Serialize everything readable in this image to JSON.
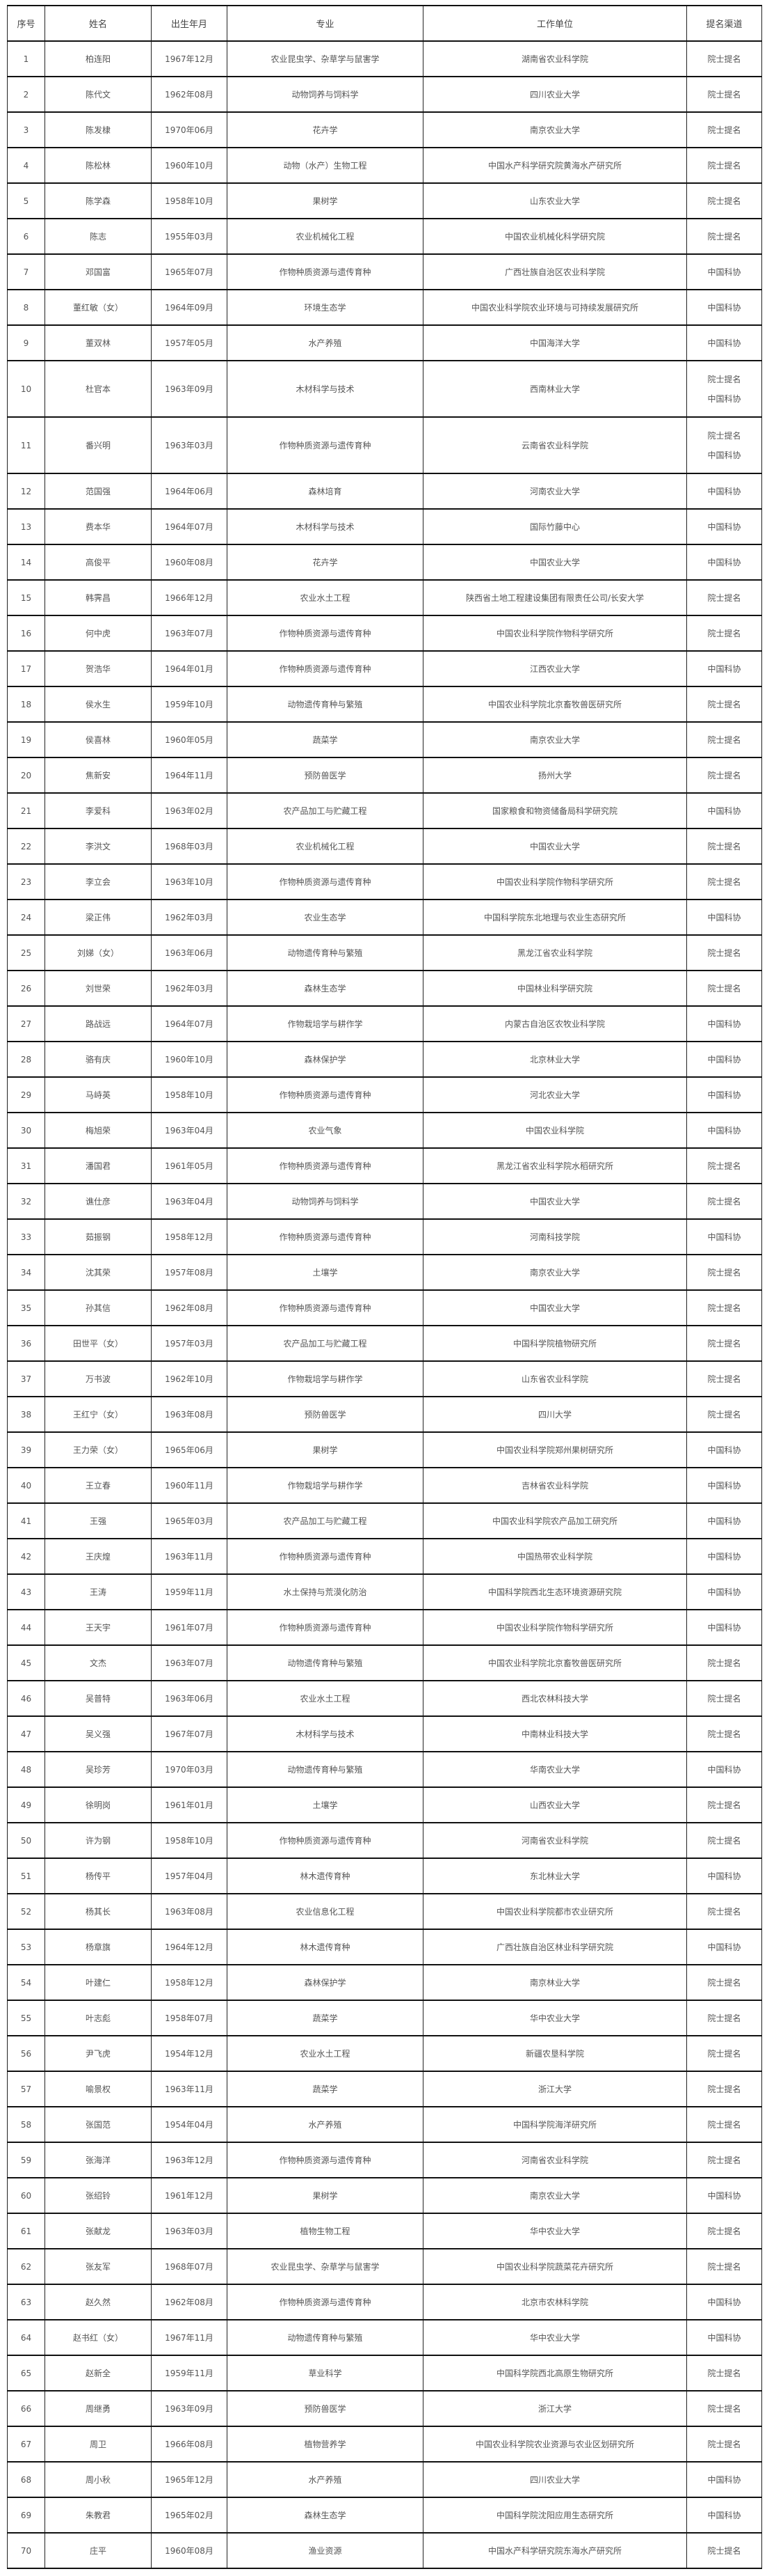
{
  "headers": [
    "序号",
    "姓名",
    "出生年月",
    "专业",
    "工作单位",
    "提名渠道"
  ],
  "rows": [
    [
      "1",
      "柏连阳",
      "1967年12月",
      "农业昆虫学、杂草学与鼠害学",
      "湖南省农业科学院",
      [
        "院士提名"
      ]
    ],
    [
      "2",
      "陈代文",
      "1962年08月",
      "动物饲养与饲料学",
      "四川农业大学",
      [
        "院士提名"
      ]
    ],
    [
      "3",
      "陈发棣",
      "1970年06月",
      "花卉学",
      "南京农业大学",
      [
        "院士提名"
      ]
    ],
    [
      "4",
      "陈松林",
      "1960年10月",
      "动物（水产）生物工程",
      "中国水产科学研究院黄海水产研究所",
      [
        "院士提名"
      ]
    ],
    [
      "5",
      "陈学森",
      "1958年10月",
      "果树学",
      "山东农业大学",
      [
        "院士提名"
      ]
    ],
    [
      "6",
      "陈志",
      "1955年03月",
      "农业机械化工程",
      "中国农业机械化科学研究院",
      [
        "院士提名"
      ]
    ],
    [
      "7",
      "邓国富",
      "1965年07月",
      "作物种质资源与遗传育种",
      "广西壮族自治区农业科学院",
      [
        "中国科协"
      ]
    ],
    [
      "8",
      "董红敏（女）",
      "1964年09月",
      "环境生态学",
      "中国农业科学院农业环境与可持续发展研究所",
      [
        "中国科协"
      ]
    ],
    [
      "9",
      "董双林",
      "1957年05月",
      "水产养殖",
      "中国海洋大学",
      [
        "中国科协"
      ]
    ],
    [
      "10",
      "杜官本",
      "1963年09月",
      "木材科学与技术",
      "西南林业大学",
      [
        "院士提名",
        "中国科协"
      ]
    ],
    [
      "11",
      "番兴明",
      "1963年03月",
      "作物种质资源与遗传育种",
      "云南省农业科学院",
      [
        "院士提名",
        "中国科协"
      ]
    ],
    [
      "12",
      "范国强",
      "1964年06月",
      "森林培育",
      "河南农业大学",
      [
        "中国科协"
      ]
    ],
    [
      "13",
      "费本华",
      "1964年07月",
      "木材科学与技术",
      "国际竹藤中心",
      [
        "中国科协"
      ]
    ],
    [
      "14",
      "高俊平",
      "1960年08月",
      "花卉学",
      "中国农业大学",
      [
        "中国科协"
      ]
    ],
    [
      "15",
      "韩霁昌",
      "1966年12月",
      "农业水土工程",
      "陕西省土地工程建设集团有限责任公司/长安大学",
      [
        "院士提名"
      ]
    ],
    [
      "16",
      "何中虎",
      "1963年07月",
      "作物种质资源与遗传育种",
      "中国农业科学院作物科学研究所",
      [
        "院士提名"
      ]
    ],
    [
      "17",
      "贺浩华",
      "1964年01月",
      "作物种质资源与遗传育种",
      "江西农业大学",
      [
        "中国科协"
      ]
    ],
    [
      "18",
      "侯水生",
      "1959年10月",
      "动物遗传育种与繁殖",
      "中国农业科学院北京畜牧兽医研究所",
      [
        "院士提名"
      ]
    ],
    [
      "19",
      "侯喜林",
      "1960年05月",
      "蔬菜学",
      "南京农业大学",
      [
        "院士提名"
      ]
    ],
    [
      "20",
      "焦新安",
      "1964年11月",
      "预防兽医学",
      "扬州大学",
      [
        "院士提名"
      ]
    ],
    [
      "21",
      "李爱科",
      "1963年02月",
      "农产品加工与贮藏工程",
      "国家粮食和物资储备局科学研究院",
      [
        "中国科协"
      ]
    ],
    [
      "22",
      "李洪文",
      "1968年03月",
      "农业机械化工程",
      "中国农业大学",
      [
        "院士提名"
      ]
    ],
    [
      "23",
      "李立会",
      "1963年10月",
      "作物种质资源与遗传育种",
      "中国农业科学院作物科学研究所",
      [
        "院士提名"
      ]
    ],
    [
      "24",
      "梁正伟",
      "1962年03月",
      "农业生态学",
      "中国科学院东北地理与农业生态研究所",
      [
        "中国科协"
      ]
    ],
    [
      "25",
      "刘娣（女）",
      "1963年06月",
      "动物遗传育种与繁殖",
      "黑龙江省农业科学院",
      [
        "院士提名"
      ]
    ],
    [
      "26",
      "刘世荣",
      "1962年03月",
      "森林生态学",
      "中国林业科学研究院",
      [
        "院士提名"
      ]
    ],
    [
      "27",
      "路战远",
      "1964年07月",
      "作物栽培学与耕作学",
      "内蒙古自治区农牧业科学院",
      [
        "中国科协"
      ]
    ],
    [
      "28",
      "骆有庆",
      "1960年10月",
      "森林保护学",
      "北京林业大学",
      [
        "中国科协"
      ]
    ],
    [
      "29",
      "马峙英",
      "1958年10月",
      "作物种质资源与遗传育种",
      "河北农业大学",
      [
        "中国科协"
      ]
    ],
    [
      "30",
      "梅旭荣",
      "1963年04月",
      "农业气象",
      "中国农业科学院",
      [
        "中国科协"
      ]
    ],
    [
      "31",
      "潘国君",
      "1961年05月",
      "作物种质资源与遗传育种",
      "黑龙江省农业科学院水稻研究所",
      [
        "院士提名"
      ]
    ],
    [
      "32",
      "谯仕彦",
      "1963年04月",
      "动物饲养与饲料学",
      "中国农业大学",
      [
        "院士提名"
      ]
    ],
    [
      "33",
      "茹振钢",
      "1958年12月",
      "作物种质资源与遗传育种",
      "河南科技学院",
      [
        "中国科协"
      ]
    ],
    [
      "34",
      "沈其荣",
      "1957年08月",
      "土壤学",
      "南京农业大学",
      [
        "院士提名"
      ]
    ],
    [
      "35",
      "孙其信",
      "1962年08月",
      "作物种质资源与遗传育种",
      "中国农业大学",
      [
        "院士提名"
      ]
    ],
    [
      "36",
      "田世平（女）",
      "1957年03月",
      "农产品加工与贮藏工程",
      "中国科学院植物研究所",
      [
        "院士提名"
      ]
    ],
    [
      "37",
      "万书波",
      "1962年10月",
      "作物栽培学与耕作学",
      "山东省农业科学院",
      [
        "院士提名"
      ]
    ],
    [
      "38",
      "王红宁（女）",
      "1963年08月",
      "预防兽医学",
      "四川大学",
      [
        "院士提名"
      ]
    ],
    [
      "39",
      "王力荣（女）",
      "1965年06月",
      "果树学",
      "中国农业科学院郑州果树研究所",
      [
        "中国科协"
      ]
    ],
    [
      "40",
      "王立春",
      "1960年11月",
      "作物栽培学与耕作学",
      "吉林省农业科学院",
      [
        "中国科协"
      ]
    ],
    [
      "41",
      "王强",
      "1965年03月",
      "农产品加工与贮藏工程",
      "中国农业科学院农产品加工研究所",
      [
        "中国科协"
      ]
    ],
    [
      "42",
      "王庆煌",
      "1963年11月",
      "作物种质资源与遗传育种",
      "中国热带农业科学院",
      [
        "中国科协"
      ]
    ],
    [
      "43",
      "王涛",
      "1959年11月",
      "水土保持与荒漠化防治",
      "中国科学院西北生态环境资源研究院",
      [
        "中国科协"
      ]
    ],
    [
      "44",
      "王天宇",
      "1961年07月",
      "作物种质资源与遗传育种",
      "中国农业科学院作物科学研究所",
      [
        "中国科协"
      ]
    ],
    [
      "45",
      "文杰",
      "1963年07月",
      "动物遗传育种与繁殖",
      "中国农业科学院北京畜牧兽医研究所",
      [
        "院士提名"
      ]
    ],
    [
      "46",
      "吴普特",
      "1963年06月",
      "农业水土工程",
      "西北农林科技大学",
      [
        "院士提名"
      ]
    ],
    [
      "47",
      "吴义强",
      "1967年07月",
      "木材科学与技术",
      "中南林业科技大学",
      [
        "院士提名"
      ]
    ],
    [
      "48",
      "吴珍芳",
      "1970年03月",
      "动物遗传育种与繁殖",
      "华南农业大学",
      [
        "中国科协"
      ]
    ],
    [
      "49",
      "徐明岗",
      "1961年01月",
      "土壤学",
      "山西农业大学",
      [
        "院士提名"
      ]
    ],
    [
      "50",
      "许为钢",
      "1958年10月",
      "作物种质资源与遗传育种",
      "河南省农业科学院",
      [
        "院士提名"
      ]
    ],
    [
      "51",
      "杨传平",
      "1957年04月",
      "林木遗传育种",
      "东北林业大学",
      [
        "中国科协"
      ]
    ],
    [
      "52",
      "杨其长",
      "1963年08月",
      "农业信息化工程",
      "中国农业科学院都市农业研究所",
      [
        "院士提名"
      ]
    ],
    [
      "53",
      "杨章旗",
      "1964年12月",
      "林木遗传育种",
      "广西壮族自治区林业科学研究院",
      [
        "中国科协"
      ]
    ],
    [
      "54",
      "叶建仁",
      "1958年12月",
      "森林保护学",
      "南京林业大学",
      [
        "院士提名"
      ]
    ],
    [
      "55",
      "叶志彪",
      "1958年07月",
      "蔬菜学",
      "华中农业大学",
      [
        "院士提名"
      ]
    ],
    [
      "56",
      "尹飞虎",
      "1954年12月",
      "农业水土工程",
      "新疆农垦科学院",
      [
        "院士提名"
      ]
    ],
    [
      "57",
      "喻景权",
      "1963年11月",
      "蔬菜学",
      "浙江大学",
      [
        "院士提名"
      ]
    ],
    [
      "58",
      "张国范",
      "1954年04月",
      "水产养殖",
      "中国科学院海洋研究所",
      [
        "院士提名"
      ]
    ],
    [
      "59",
      "张海洋",
      "1963年12月",
      "作物种质资源与遗传育种",
      "河南省农业科学院",
      [
        "院士提名"
      ]
    ],
    [
      "60",
      "张绍铃",
      "1961年12月",
      "果树学",
      "南京农业大学",
      [
        "中国科协"
      ]
    ],
    [
      "61",
      "张献龙",
      "1963年03月",
      "植物生物工程",
      "华中农业大学",
      [
        "院士提名"
      ]
    ],
    [
      "62",
      "张友军",
      "1968年07月",
      "农业昆虫学、杂草学与鼠害学",
      "中国农业科学院蔬菜花卉研究所",
      [
        "院士提名"
      ]
    ],
    [
      "63",
      "赵久然",
      "1962年08月",
      "作物种质资源与遗传育种",
      "北京市农林科学院",
      [
        "中国科协"
      ]
    ],
    [
      "64",
      "赵书红（女）",
      "1967年11月",
      "动物遗传育种与繁殖",
      "华中农业大学",
      [
        "中国科协"
      ]
    ],
    [
      "65",
      "赵新全",
      "1959年11月",
      "草业科学",
      "中国科学院西北高原生物研究所",
      [
        "院士提名"
      ]
    ],
    [
      "66",
      "周继勇",
      "1963年09月",
      "预防兽医学",
      "浙江大学",
      [
        "院士提名"
      ]
    ],
    [
      "67",
      "周卫",
      "1966年08月",
      "植物营养学",
      "中国农业科学院农业资源与农业区划研究所",
      [
        "院士提名"
      ]
    ],
    [
      "68",
      "周小秋",
      "1965年12月",
      "水产养殖",
      "四川农业大学",
      [
        "中国科协"
      ]
    ],
    [
      "69",
      "朱教君",
      "1965年02月",
      "森林生态学",
      "中国科学院沈阳应用生态研究所",
      [
        "中国科协"
      ]
    ],
    [
      "70",
      "庄平",
      "1960年08月",
      "渔业资源",
      "中国水产科学研究院东海水产研究所",
      [
        "院士提名"
      ]
    ]
  ]
}
